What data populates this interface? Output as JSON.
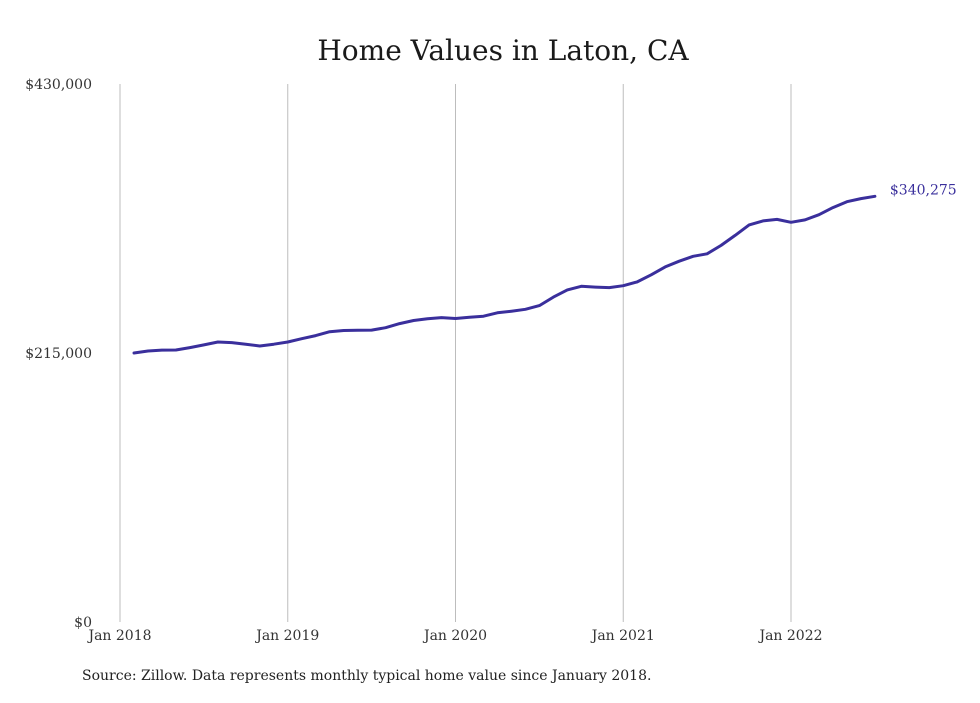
{
  "chart_data": {
    "type": "line",
    "title": "Home Values in Laton, CA",
    "xlabel": "",
    "ylabel": "",
    "ylim": [
      0,
      430000
    ],
    "y_ticks": [
      {
        "value": 0,
        "label": "$0"
      },
      {
        "value": 215000,
        "label": "$215,000"
      },
      {
        "value": 430000,
        "label": "$430,000"
      }
    ],
    "x_ticks": [
      {
        "value": "2018-01",
        "label": "Jan 2018"
      },
      {
        "value": "2019-01",
        "label": "Jan 2019"
      },
      {
        "value": "2020-01",
        "label": "Jan 2020"
      },
      {
        "value": "2021-01",
        "label": "Jan 2021"
      },
      {
        "value": "2022-01",
        "label": "Jan 2022"
      }
    ],
    "grid": {
      "vertical": true,
      "horizontal": false
    },
    "series": [
      {
        "color": "#3a2f9c",
        "end_label": "$340,275",
        "x": [
          "2018-02",
          "2018-03",
          "2018-04",
          "2018-05",
          "2018-06",
          "2018-07",
          "2018-08",
          "2018-09",
          "2018-10",
          "2018-11",
          "2018-12",
          "2019-01",
          "2019-02",
          "2019-03",
          "2019-04",
          "2019-05",
          "2019-06",
          "2019-07",
          "2019-08",
          "2019-09",
          "2019-10",
          "2019-11",
          "2019-12",
          "2020-01",
          "2020-02",
          "2020-03",
          "2020-04",
          "2020-05",
          "2020-06",
          "2020-07",
          "2020-08",
          "2020-09",
          "2020-10",
          "2020-11",
          "2020-12",
          "2021-01",
          "2021-02",
          "2021-03",
          "2021-04",
          "2021-05",
          "2021-06",
          "2021-07",
          "2021-08",
          "2021-09",
          "2021-10",
          "2021-11",
          "2021-12",
          "2022-01",
          "2022-02",
          "2022-03",
          "2022-04",
          "2022-05",
          "2022-06",
          "2022-07"
        ],
        "values": [
          215000,
          216600,
          217300,
          217400,
          219300,
          221500,
          223800,
          223300,
          222000,
          220600,
          222000,
          223800,
          226400,
          228900,
          232000,
          233000,
          233200,
          233300,
          235200,
          238500,
          241000,
          242400,
          243300,
          242600,
          243500,
          244400,
          247100,
          248400,
          249900,
          252900,
          259700,
          265400,
          268300,
          267700,
          267300,
          268800,
          271800,
          277500,
          283800,
          288400,
          292300,
          294300,
          301000,
          309000,
          317400,
          320600,
          321800,
          319500,
          321400,
          325500,
          331200,
          335900,
          338400,
          340275
        ]
      }
    ]
  },
  "footer": {
    "source_note": "Source: Zillow. Data represents monthly typical home value since January 2018."
  }
}
